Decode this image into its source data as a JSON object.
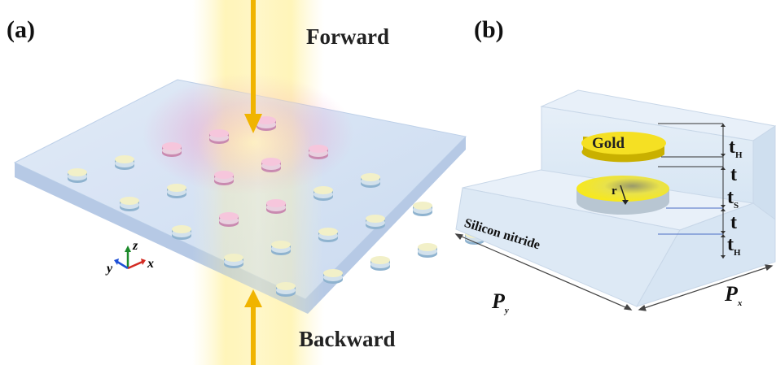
{
  "panel_a": {
    "label": "(a)",
    "top_label": "Forward",
    "bottom_label": "Backward",
    "axes": {
      "x": "x",
      "y": "y",
      "z": "z"
    },
    "colors": {
      "beam": "#f6c81e",
      "slab": "#c9dbf2",
      "glow": "#ee88c2"
    }
  },
  "panel_b": {
    "label": "(b)",
    "gold_label": "Gold",
    "substrate_label": "Silicon nitride",
    "radius_label": "r",
    "px": {
      "main": "P",
      "sub": "x"
    },
    "py": {
      "main": "P",
      "sub": "y"
    },
    "t_top": {
      "main": "t",
      "sub": "H"
    },
    "t_gap1": {
      "main": "t",
      "sub": ""
    },
    "t_s": {
      "main": "t",
      "sub": "S"
    },
    "t_gap2": {
      "main": "t",
      "sub": ""
    },
    "t_bottom": {
      "main": "t",
      "sub": "H"
    },
    "colors": {
      "gold": "#f5e023",
      "block": "#dce9f5"
    }
  }
}
